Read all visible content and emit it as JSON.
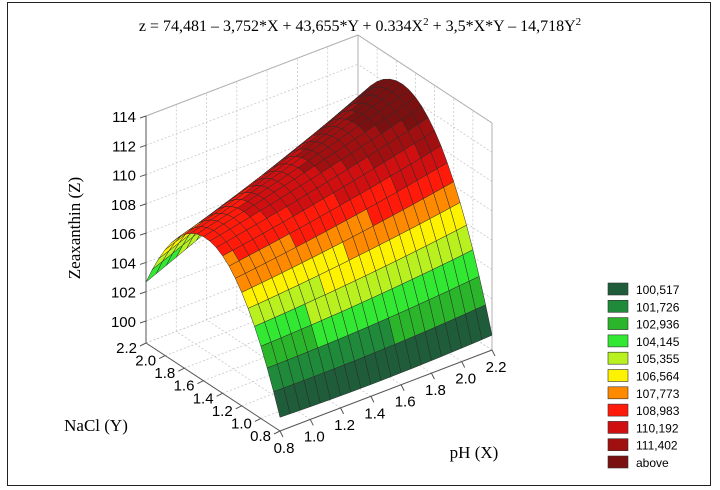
{
  "chart_data": {
    "type": "surface3d",
    "title_parts": {
      "main": "z = 74,481 – 3,752*X + 43,655*Y + 0.334X",
      "sup1": "2",
      "mid": " + 3,5*X*Y – 14,718Y",
      "sup2": "2"
    },
    "zlabel": "Zeaxanthin (Z)",
    "xlabel": "pH (X)",
    "ylabel": "NaCl (Y)",
    "coefficients": {
      "c0": 74.481,
      "cx": -3.752,
      "cy": 43.655,
      "cxx": 0.334,
      "cxy": 3.5,
      "cyy": -14.718
    },
    "xlim": [
      0.8,
      2.2
    ],
    "ylim": [
      0.8,
      2.2
    ],
    "zlim": [
      98.5,
      114
    ],
    "x_ticks": [
      "0.8",
      "1.0",
      "1.2",
      "1.4",
      "1.6",
      "1.8",
      "2.0",
      "2.2"
    ],
    "y_ticks": [
      "0.8",
      "1.0",
      "1.2",
      "1.4",
      "1.6",
      "1.8",
      "2.0",
      "2.2"
    ],
    "z_ticks": [
      "100",
      "102",
      "104",
      "106",
      "108",
      "110",
      "112",
      "114"
    ],
    "grid": true,
    "legend_position": "right",
    "legend": [
      {
        "label": "100,517",
        "color": "#1e5c3a"
      },
      {
        "label": "101,726",
        "color": "#1f8a3a"
      },
      {
        "label": "102,936",
        "color": "#2ab52a"
      },
      {
        "label": "104,145",
        "color": "#33e833"
      },
      {
        "label": "105,355",
        "color": "#b8f020"
      },
      {
        "label": "106,564",
        "color": "#fff200"
      },
      {
        "label": "107,773",
        "color": "#ff8a00"
      },
      {
        "label": "108,983",
        "color": "#ff1a0a"
      },
      {
        "label": "110,192",
        "color": "#d01010"
      },
      {
        "label": "111,402",
        "color": "#a01010"
      },
      {
        "label": "above",
        "color": "#7a1010"
      }
    ],
    "legend_thresholds": [
      100.517,
      101.726,
      102.936,
      104.145,
      105.355,
      106.564,
      107.773,
      108.983,
      110.192,
      111.402
    ],
    "below_color": "#cccccc"
  }
}
